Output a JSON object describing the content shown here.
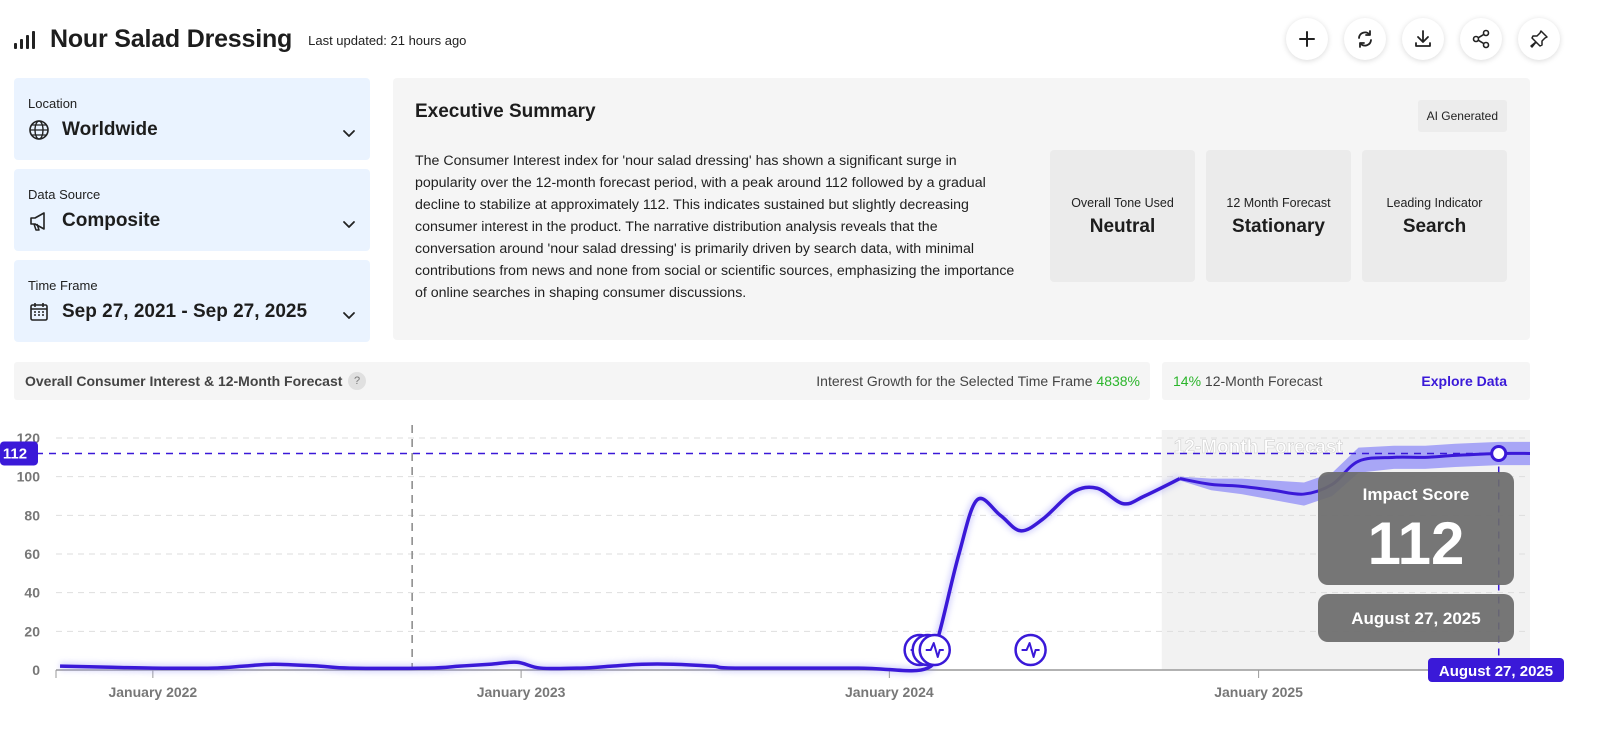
{
  "header": {
    "title": "Nour Salad Dressing",
    "last_updated": "Last updated: 21 hours ago",
    "actions": [
      "plus-icon",
      "refresh-icon",
      "download-icon",
      "share-icon",
      "pin-icon"
    ]
  },
  "filters": {
    "location": {
      "label": "Location",
      "value": "Worldwide",
      "icon": "globe-icon"
    },
    "data_source": {
      "label": "Data Source",
      "value": "Composite",
      "icon": "megaphone-icon"
    },
    "time_frame": {
      "label": "Time Frame",
      "value": "Sep 27, 2021 - Sep 27, 2025",
      "icon": "calendar-icon"
    }
  },
  "summary": {
    "title": "Executive Summary",
    "badge": "AI Generated",
    "text": "The Consumer Interest index for 'nour salad dressing' has shown a significant surge in popularity over the 12-month forecast period, with a peak around 112 followed by a gradual decline to stabilize at approximately 112. This indicates sustained but slightly decreasing consumer interest in the product. The narrative distribution analysis reveals that the conversation around 'nour salad dressing' is primarily driven by search data, with minimal contributions from news and none from social or scientific sources, emphasizing the importance of online searches in shaping consumer discussions.",
    "stats": [
      {
        "label": "Overall Tone Used",
        "value": "Neutral"
      },
      {
        "label": "12 Month Forecast",
        "value": "Stationary"
      },
      {
        "label": "Leading Indicator",
        "value": "Search"
      }
    ]
  },
  "chart_header": {
    "title": "Overall Consumer Interest & 12-Month Forecast",
    "help": "?",
    "growth_label": "Interest Growth for the Selected Time Frame",
    "growth_value": "4838%",
    "forecast_value": "14%",
    "forecast_label": "12-Month Forecast",
    "explore": "Explore Data"
  },
  "colors": {
    "line": "#3a19d8",
    "band": "#8f8cf7",
    "growth": "#2bb52b",
    "filter_bg": "#eaf3ff",
    "card_bg": "#f5f5f5"
  },
  "chart_data": {
    "type": "line",
    "ylim": [
      0,
      120
    ],
    "yticks": [
      0,
      20,
      40,
      60,
      80,
      100,
      120
    ],
    "xlim": [
      "2021-09-27",
      "2025-09-27"
    ],
    "xticks": [
      {
        "date": "2022-01-01",
        "label": "January 2022"
      },
      {
        "date": "2023-01-01",
        "label": "January 2023"
      },
      {
        "date": "2024-01-01",
        "label": "January 2024"
      },
      {
        "date": "2025-01-01",
        "label": "January 2025"
      }
    ],
    "grid": true,
    "reference_line": {
      "value": 112,
      "label": "112"
    },
    "event_marker_date": "2022-09-15",
    "forecast_region": {
      "start": "2024-09-27",
      "label": "12-Month Forecast"
    },
    "impact_score": {
      "label": "Impact Score",
      "value": "112",
      "date_label": "August 27, 2025",
      "date": "2025-08-27"
    },
    "highlight_date_label": "August 27, 2025",
    "history": [
      {
        "x": "2021-10-01",
        "y": 2
      },
      {
        "x": "2021-11-15",
        "y": 1.5
      },
      {
        "x": "2022-01-01",
        "y": 1
      },
      {
        "x": "2022-03-01",
        "y": 1
      },
      {
        "x": "2022-04-01",
        "y": 2
      },
      {
        "x": "2022-05-01",
        "y": 3
      },
      {
        "x": "2022-06-15",
        "y": 2
      },
      {
        "x": "2022-07-15",
        "y": 1
      },
      {
        "x": "2022-10-01",
        "y": 1
      },
      {
        "x": "2022-11-01",
        "y": 2
      },
      {
        "x": "2022-12-01",
        "y": 3
      },
      {
        "x": "2022-12-28",
        "y": 4
      },
      {
        "x": "2023-01-20",
        "y": 1
      },
      {
        "x": "2023-03-01",
        "y": 1
      },
      {
        "x": "2023-04-01",
        "y": 2
      },
      {
        "x": "2023-05-01",
        "y": 3
      },
      {
        "x": "2023-06-01",
        "y": 3
      },
      {
        "x": "2023-07-10",
        "y": 2
      },
      {
        "x": "2023-08-01",
        "y": 1
      },
      {
        "x": "2023-12-01",
        "y": 1
      },
      {
        "x": "2024-02-08",
        "y": 1
      },
      {
        "x": "2024-02-20",
        "y": 20
      },
      {
        "x": "2024-03-10",
        "y": 60
      },
      {
        "x": "2024-03-28",
        "y": 88
      },
      {
        "x": "2024-04-20",
        "y": 80
      },
      {
        "x": "2024-05-10",
        "y": 72
      },
      {
        "x": "2024-06-01",
        "y": 78
      },
      {
        "x": "2024-07-01",
        "y": 92
      },
      {
        "x": "2024-07-25",
        "y": 94
      },
      {
        "x": "2024-08-20",
        "y": 86
      },
      {
        "x": "2024-09-10",
        "y": 90
      },
      {
        "x": "2024-10-15",
        "y": 99
      }
    ],
    "forecast": [
      {
        "x": "2024-10-15",
        "y": 99,
        "lo": 98,
        "hi": 100
      },
      {
        "x": "2024-11-15",
        "y": 96,
        "lo": 93,
        "hi": 99
      },
      {
        "x": "2024-12-15",
        "y": 95,
        "lo": 91,
        "hi": 99
      },
      {
        "x": "2025-01-15",
        "y": 93,
        "lo": 88,
        "hi": 98
      },
      {
        "x": "2025-02-15",
        "y": 91,
        "lo": 85,
        "hi": 97
      },
      {
        "x": "2025-03-15",
        "y": 96,
        "lo": 90,
        "hi": 102
      },
      {
        "x": "2025-04-10",
        "y": 108,
        "lo": 102,
        "hi": 115
      },
      {
        "x": "2025-05-15",
        "y": 110,
        "lo": 104,
        "hi": 116
      },
      {
        "x": "2025-06-15",
        "y": 110,
        "lo": 104,
        "hi": 116
      },
      {
        "x": "2025-07-15",
        "y": 111,
        "lo": 105,
        "hi": 117
      },
      {
        "x": "2025-08-27",
        "y": 112,
        "lo": 106,
        "hi": 118
      },
      {
        "x": "2025-09-27",
        "y": 112,
        "lo": 106,
        "hi": 118
      }
    ],
    "event_icons": [
      {
        "x": "2024-01-31"
      },
      {
        "x": "2024-02-08"
      },
      {
        "x": "2024-02-15"
      },
      {
        "x": "2024-05-20"
      }
    ]
  }
}
